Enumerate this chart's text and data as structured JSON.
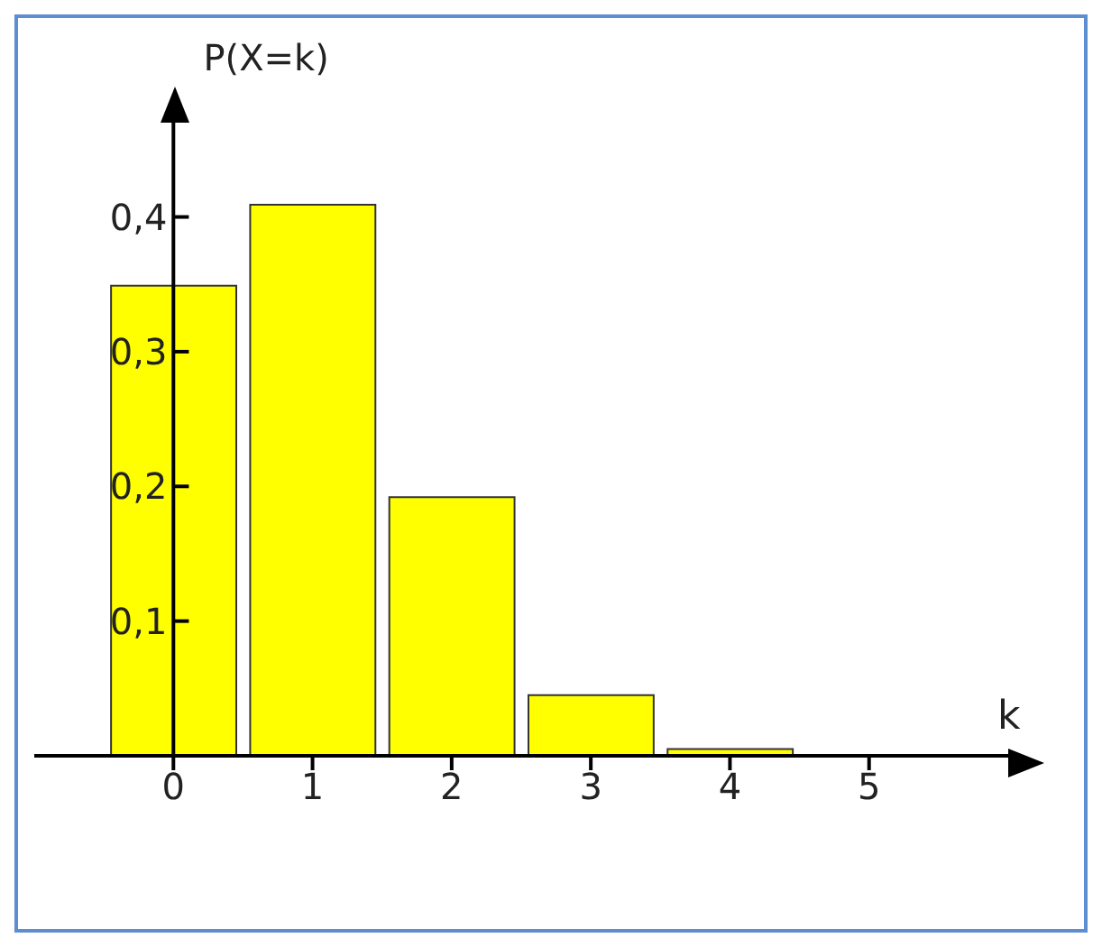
{
  "chart_data": {
    "type": "histogram",
    "xlabel": "k",
    "ylabel": "P(X=k)",
    "bins": [
      -0.5,
      0.5,
      1.5,
      2.5,
      3.5,
      4.5
    ],
    "values": [
      0.349,
      0.409,
      0.192,
      0.045,
      0.005
    ],
    "color": "#ffff00",
    "xlim": [
      -1,
      6
    ],
    "xticks": [
      0,
      1,
      2,
      3,
      4,
      5
    ],
    "ylim": [
      0,
      0.47
    ],
    "yticks": [
      {
        "value": 0.1,
        "label": "0,1"
      },
      {
        "value": 0.2,
        "label": "0,2"
      },
      {
        "value": 0.3,
        "label": "0,3"
      },
      {
        "value": 0.4,
        "label": "0,4"
      }
    ],
    "grid": false,
    "legend": false
  }
}
